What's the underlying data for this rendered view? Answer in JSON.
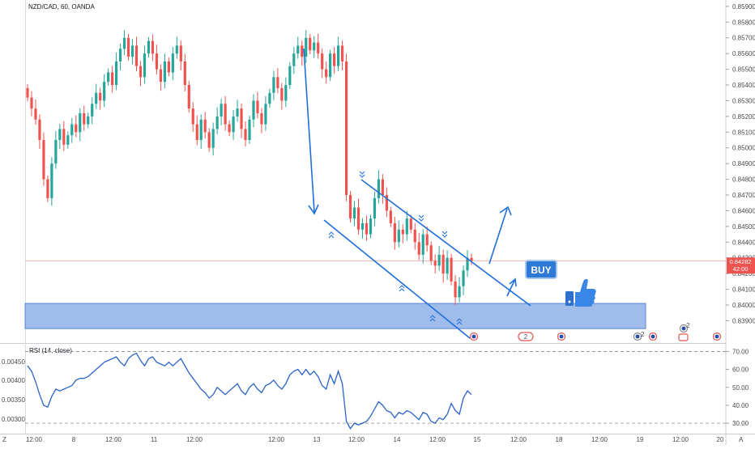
{
  "header": {
    "symbol_title": "NZD/CAD, 60, OANDA"
  },
  "price_axis": {
    "ticks": [
      "0.85900",
      "0.85800",
      "0.85700",
      "0.85600",
      "0.85500",
      "0.85400",
      "0.85300",
      "0.85200",
      "0.85100",
      "0.85000",
      "0.84900",
      "0.84800",
      "0.84700",
      "0.84600",
      "0.84500",
      "0.84400",
      "0.84300",
      "0.84200",
      "0.84100",
      "0.84000",
      "0.83900"
    ],
    "last_price": "0.84282",
    "countdown": "42:00"
  },
  "rsi_axis": {
    "left_ticks": [
      "0.00450",
      "0.00400",
      "0.00350",
      "0.00300"
    ],
    "right_ticks": [
      "70.00",
      "60.00",
      "50.00",
      "40.00",
      "30.00"
    ]
  },
  "time_axis": {
    "labels": [
      "12:00",
      "8",
      "12:00",
      "11",
      "12:00",
      "12:00",
      "13",
      "12:00",
      "14",
      "12:00",
      "15",
      "12:00",
      "18",
      "12:00",
      "19",
      "12:00",
      "20"
    ],
    "corner_left": "Z",
    "corner_right": "A"
  },
  "rsi_panel": {
    "label": "RSI (14, close)"
  },
  "annotations": {
    "buy_label": "BUY",
    "thumbs_icon": "thumbs-up-icon"
  },
  "event_badges": {
    "count_1": "2",
    "count_2": "2",
    "count_3": "2",
    "count_4": "2"
  },
  "colors": {
    "up_candle": "#26a69a",
    "down_candle": "#ef5350",
    "drawing_blue": "#1e6fd9",
    "support_zone": "#8fb0e8",
    "buy_button": "#2d7ad6",
    "last_price_badge": "#ef5350"
  },
  "chart_data": {
    "type": "candlestick",
    "title": "NZD/CAD, 60, OANDA",
    "ylim": [
      0.8382,
      0.8592
    ],
    "last_price": 0.84282,
    "support_zone": [
      0.8385,
      0.8401
    ],
    "closes": [
      0.8532,
      0.8525,
      0.8518,
      0.8505,
      0.848,
      0.8468,
      0.849,
      0.8505,
      0.8512,
      0.8502,
      0.8508,
      0.8515,
      0.851,
      0.8522,
      0.8515,
      0.852,
      0.8528,
      0.8535,
      0.853,
      0.8542,
      0.8548,
      0.854,
      0.8555,
      0.8563,
      0.857,
      0.8558,
      0.8565,
      0.8552,
      0.8545,
      0.856,
      0.8568,
      0.856,
      0.855,
      0.8542,
      0.8555,
      0.8548,
      0.856,
      0.8565,
      0.8555,
      0.854,
      0.8525,
      0.8515,
      0.8505,
      0.8518,
      0.851,
      0.85,
      0.8512,
      0.852,
      0.8528,
      0.8515,
      0.851,
      0.852,
      0.8525,
      0.8512,
      0.8505,
      0.8518,
      0.853,
      0.8522,
      0.8515,
      0.8528,
      0.8535,
      0.8545,
      0.8538,
      0.853,
      0.854,
      0.8552,
      0.856,
      0.8565,
      0.8558,
      0.857,
      0.8562,
      0.8567,
      0.856,
      0.855,
      0.8545,
      0.856,
      0.8552,
      0.8565,
      0.8555,
      0.847,
      0.8455,
      0.8462,
      0.8448,
      0.8452,
      0.8445,
      0.8455,
      0.8468,
      0.848,
      0.847,
      0.846,
      0.8452,
      0.844,
      0.8448,
      0.8445,
      0.8455,
      0.8448,
      0.844,
      0.8432,
      0.8445,
      0.8438,
      0.8428,
      0.8425,
      0.8432,
      0.842,
      0.843,
      0.8415,
      0.8405,
      0.8412,
      0.8422,
      0.843,
      0.8428
    ],
    "rsi": {
      "name": "RSI (14, close)",
      "ylim": [
        26,
        72
      ],
      "bands": [
        70,
        30
      ],
      "values": [
        62,
        59,
        53,
        46,
        40,
        39,
        45,
        49,
        48,
        49,
        50,
        51,
        54,
        55,
        55,
        56,
        58,
        60,
        62,
        64,
        65,
        66,
        67,
        64,
        62,
        66,
        68,
        69,
        65,
        62,
        66,
        67,
        64,
        63,
        62,
        64,
        62,
        64,
        66,
        62,
        58,
        55,
        52,
        49,
        47,
        44,
        46,
        50,
        48,
        46,
        48,
        50,
        52,
        48,
        46,
        50,
        52,
        49,
        47,
        51,
        52,
        54,
        51,
        49,
        52,
        57,
        59,
        60,
        57,
        60,
        57,
        59,
        56,
        51,
        49,
        57,
        52,
        59,
        52,
        31,
        27,
        30,
        29,
        30,
        31,
        34,
        38,
        42,
        40,
        37,
        36,
        33,
        36,
        35,
        37,
        36,
        34,
        32,
        36,
        35,
        31,
        30,
        33,
        32,
        35,
        41,
        37,
        35,
        44,
        48,
        46
      ]
    }
  }
}
